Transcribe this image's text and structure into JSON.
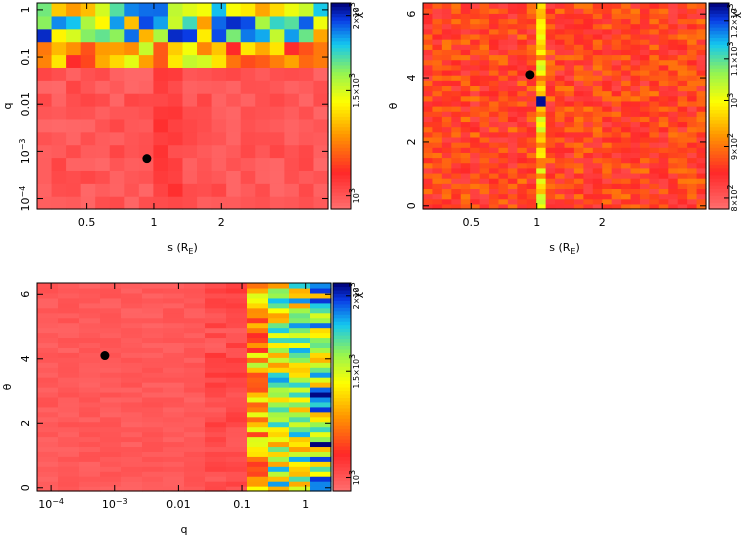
{
  "chart_data": [
    {
      "id": "panel-s-q",
      "type": "heatmap",
      "title": "",
      "xlabel": "s (R_E)",
      "ylabel": "q",
      "x_scale": "log",
      "y_scale": "log",
      "xlim": [
        0.3,
        6.0
      ],
      "ylim": [
        6e-05,
        1.4
      ],
      "x_ticks": [
        {
          "value": 0.5,
          "label": "0.5"
        },
        {
          "value": 1,
          "label": "1"
        },
        {
          "value": 2,
          "label": "2"
        }
      ],
      "y_ticks": [
        {
          "value": 1,
          "label": "1"
        },
        {
          "value": 0.1,
          "label": "0.1"
        },
        {
          "value": 0.01,
          "label": "0.01"
        },
        {
          "value": 0.001,
          "label": "10^-3"
        },
        {
          "value": 0.0001,
          "label": "10^-4"
        }
      ],
      "grid_cols": 20,
      "grid_rows": 16,
      "best_fit": {
        "x": 0.93,
        "y": 0.0007
      },
      "colorbar": {
        "label": "χ²",
        "range": [
          950,
          2100
        ],
        "ticks": [
          {
            "value": 1000,
            "label": "10^3"
          },
          {
            "value": 1500,
            "label": "1.5×10^3"
          },
          {
            "value": 2000,
            "label": "2×10^3"
          }
        ]
      },
      "seed": 11
    },
    {
      "id": "panel-s-theta",
      "type": "heatmap",
      "title": "",
      "xlabel": "s (R_E)",
      "ylabel": "θ",
      "x_scale": "log",
      "y_scale": "linear",
      "xlim": [
        0.3,
        6.0
      ],
      "ylim": [
        -0.1,
        6.35
      ],
      "x_ticks": [
        {
          "value": 0.5,
          "label": "0.5"
        },
        {
          "value": 1,
          "label": "1"
        },
        {
          "value": 2,
          "label": "2"
        }
      ],
      "y_ticks": [
        {
          "value": 0,
          "label": "0"
        },
        {
          "value": 2,
          "label": "2"
        },
        {
          "value": 4,
          "label": "4"
        },
        {
          "value": 6,
          "label": "6"
        }
      ],
      "grid_cols": 30,
      "grid_rows": 40,
      "best_fit": {
        "x": 0.93,
        "y": 4.1
      },
      "colorbar": {
        "label": "χ²",
        "range": [
          780,
          1250
        ],
        "ticks": [
          {
            "value": 800,
            "label": "8×10^2"
          },
          {
            "value": 900,
            "label": "9×10^2"
          },
          {
            "value": 1000,
            "label": "10^3"
          },
          {
            "value": 1100,
            "label": "1.1×10^3"
          },
          {
            "value": 1200,
            "label": "1.2×10^3"
          }
        ]
      },
      "seed": 23
    },
    {
      "id": "panel-q-theta",
      "type": "heatmap",
      "title": "",
      "xlabel": "q",
      "ylabel": "θ",
      "x_scale": "log",
      "y_scale": "linear",
      "xlim": [
        6e-05,
        2.5
      ],
      "ylim": [
        -0.1,
        6.35
      ],
      "x_ticks": [
        {
          "value": 0.0001,
          "label": "10^-4"
        },
        {
          "value": 0.001,
          "label": "10^-3"
        },
        {
          "value": 0.01,
          "label": "0.01"
        },
        {
          "value": 0.1,
          "label": "0.1"
        },
        {
          "value": 1,
          "label": "1"
        }
      ],
      "y_ticks": [
        {
          "value": 0,
          "label": "0"
        },
        {
          "value": 2,
          "label": "2"
        },
        {
          "value": 4,
          "label": "4"
        },
        {
          "value": 6,
          "label": "6"
        }
      ],
      "grid_cols": 14,
      "grid_rows": 42,
      "best_fit": {
        "x": 0.0007,
        "y": 4.1
      },
      "colorbar": {
        "label": "χ²",
        "range": [
          950,
          2100
        ],
        "ticks": [
          {
            "value": 1000,
            "label": "10^3"
          },
          {
            "value": 1500,
            "label": "1.5×10^3"
          },
          {
            "value": 2000,
            "label": "2×10^3"
          }
        ]
      },
      "seed": 37
    }
  ]
}
